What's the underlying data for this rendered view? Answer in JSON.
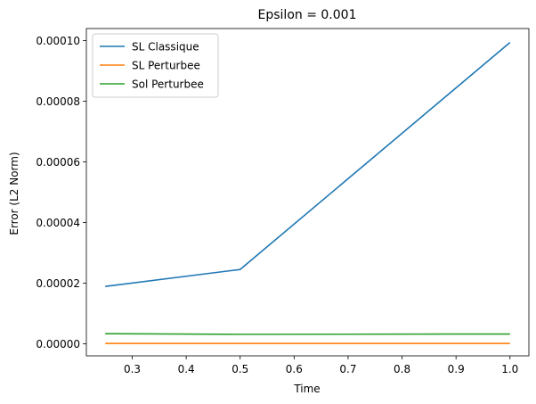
{
  "chart_data": {
    "type": "line",
    "title": "Epsilon = 0.001",
    "xlabel": "Time",
    "ylabel": "Error (L2 Norm)",
    "xlim": [
      0.215,
      1.035
    ],
    "ylim": [
      -4e-06,
      0.000104
    ],
    "xticks": [
      0.3,
      0.4,
      0.5,
      0.6,
      0.7,
      0.8,
      0.9,
      1.0
    ],
    "xtick_labels": [
      "0.3",
      "0.4",
      "0.5",
      "0.6",
      "0.7",
      "0.8",
      "0.9",
      "1.0"
    ],
    "yticks": [
      0.0,
      2e-05,
      4e-05,
      6e-05,
      8e-05,
      0.0001
    ],
    "ytick_labels": [
      "0.00000",
      "0.00002",
      "0.00004",
      "0.00006",
      "0.00008",
      "0.00010"
    ],
    "x": [
      0.25,
      0.5,
      1.0
    ],
    "series": [
      {
        "name": "SL Classique",
        "color": "#1f77b4",
        "values": [
          1.89e-05,
          2.45e-05,
          9.94e-05
        ]
      },
      {
        "name": "SL Perturbee",
        "color": "#ff7f0e",
        "values": [
          1e-07,
          1e-07,
          1e-07
        ]
      },
      {
        "name": "Sol Perturbee",
        "color": "#2ca02c",
        "values": [
          3.3e-06,
          3.1e-06,
          3.2e-06
        ]
      }
    ],
    "grid": false,
    "legend_position": "top-left"
  }
}
